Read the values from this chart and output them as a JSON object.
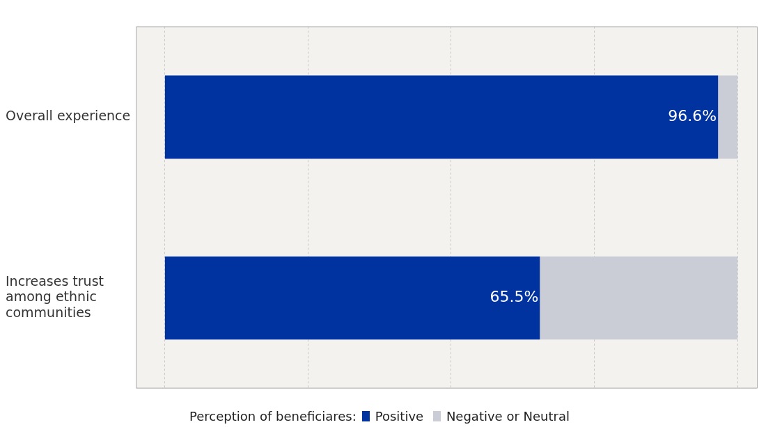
{
  "chart_data": {
    "type": "bar",
    "orientation": "horizontal",
    "stacked": true,
    "categories": [
      "Overall experience",
      "Increases trust among ethnic communities"
    ],
    "series": [
      {
        "name": "Positive",
        "color": "#0033a0",
        "values": [
          96.6,
          65.5
        ],
        "value_labels": [
          "96.6%",
          "65.5%"
        ]
      },
      {
        "name": "Negative or Neutral",
        "color": "#cbcdd6",
        "values": [
          3.4,
          34.5
        ]
      }
    ],
    "xlim": [
      -5,
      103.5
    ],
    "xticks": [
      {
        "value": 0,
        "label": null
      },
      {
        "value": 25,
        "label": null
      },
      {
        "value": 50,
        "label": null
      },
      {
        "value": 75,
        "label": null
      },
      {
        "value": 100,
        "label": null
      }
    ],
    "tick_labels": "y",
    "grid": "x",
    "legend": "bottom",
    "legend_title": "Perception of beneficiares:"
  }
}
